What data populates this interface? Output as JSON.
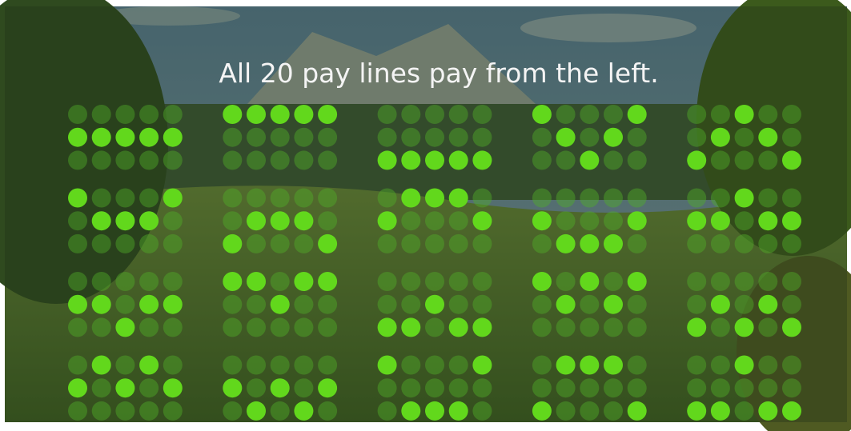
{
  "title": "All 20 pay lines pay from the left.",
  "paylines": [
    [
      1,
      1,
      1,
      1,
      1
    ],
    [
      0,
      0,
      0,
      0,
      0
    ],
    [
      2,
      2,
      2,
      2,
      2
    ],
    [
      0,
      1,
      2,
      1,
      0
    ],
    [
      2,
      1,
      0,
      1,
      2
    ],
    [
      0,
      1,
      1,
      1,
      0
    ],
    [
      2,
      1,
      1,
      1,
      2
    ],
    [
      1,
      0,
      0,
      0,
      1
    ],
    [
      1,
      2,
      2,
      2,
      1
    ],
    [
      1,
      1,
      0,
      1,
      1
    ],
    [
      1,
      1,
      2,
      1,
      1
    ],
    [
      0,
      0,
      1,
      0,
      0
    ],
    [
      2,
      2,
      1,
      2,
      2
    ],
    [
      0,
      1,
      0,
      1,
      0
    ],
    [
      2,
      1,
      2,
      1,
      2
    ],
    [
      1,
      0,
      1,
      0,
      1
    ],
    [
      1,
      2,
      1,
      2,
      1
    ],
    [
      0,
      2,
      2,
      2,
      0
    ],
    [
      2,
      0,
      0,
      0,
      2
    ],
    [
      2,
      2,
      0,
      2,
      2
    ]
  ]
}
